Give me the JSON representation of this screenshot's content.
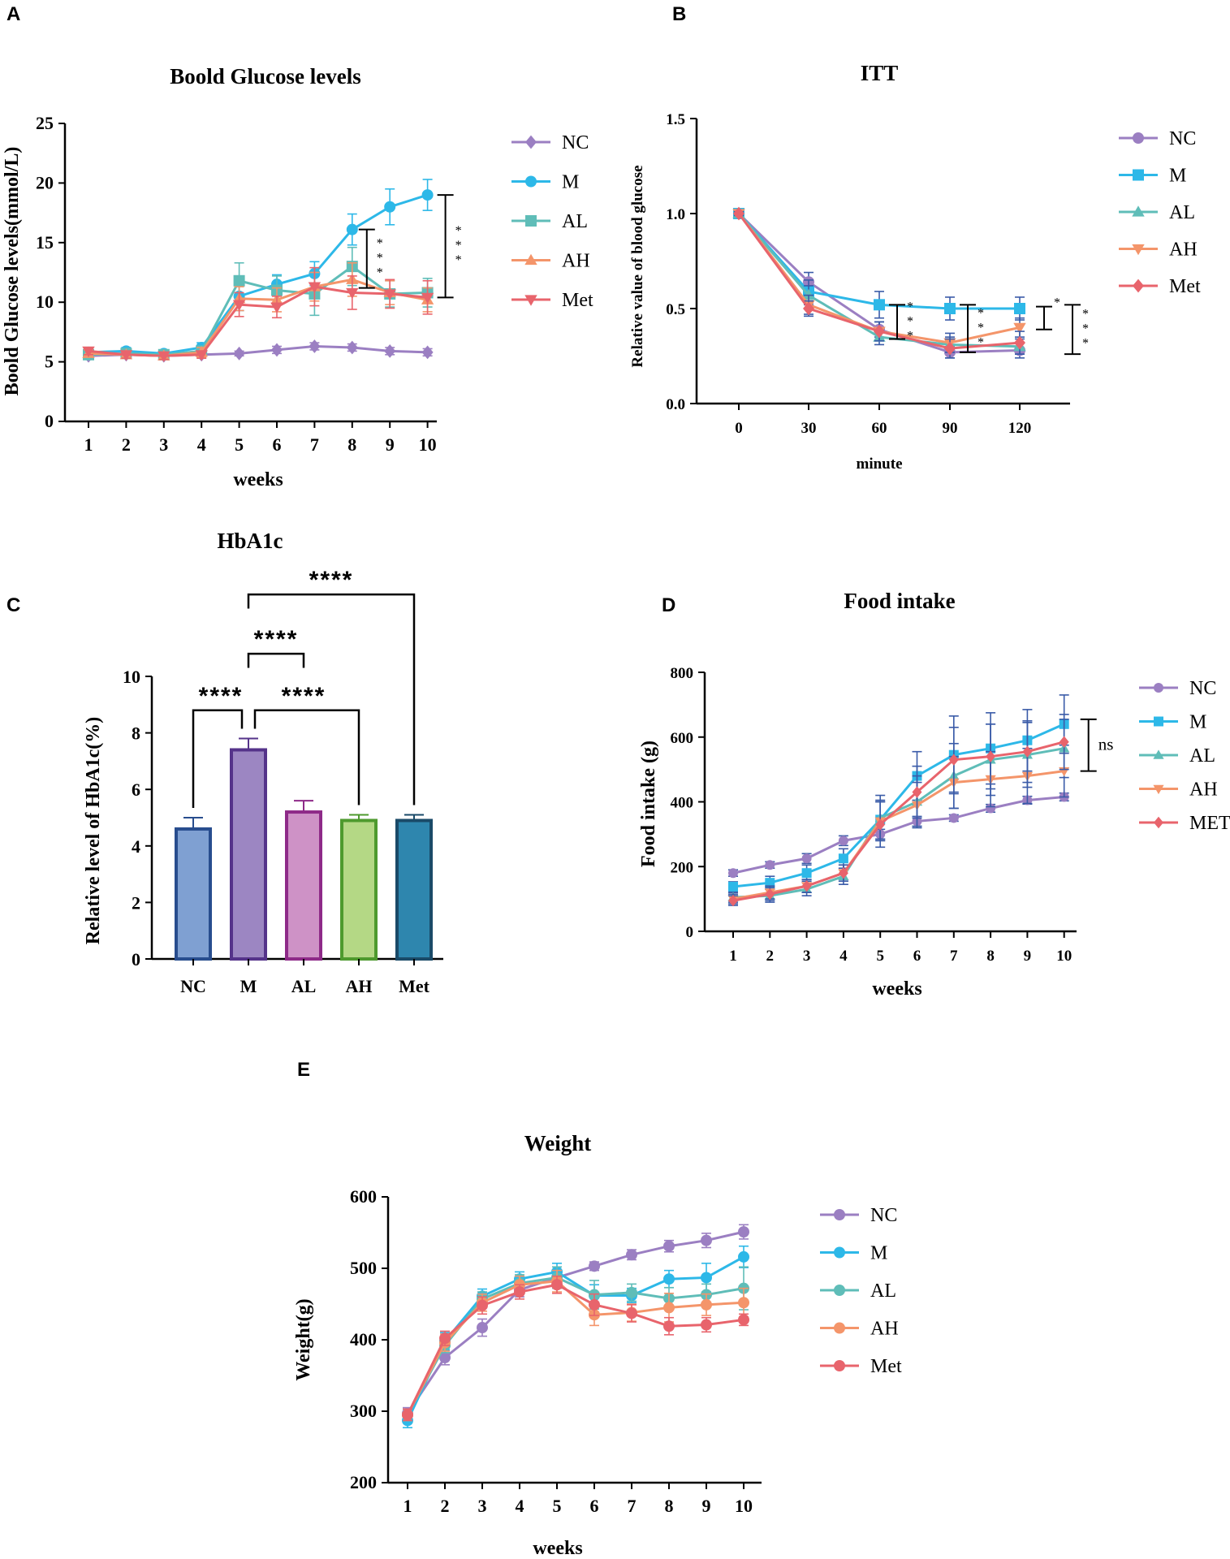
{
  "colors": {
    "NC": "#9B7FC2",
    "M": "#2DB8E8",
    "AL": "#5FBDB8",
    "AH": "#F4956A",
    "Met": "#E8646C",
    "err": "#3A5BA8",
    "bar_NC_fill": "#7FA0D2",
    "bar_NC_edge": "#284D8E",
    "bar_M_fill": "#9C86C2",
    "bar_M_edge": "#55338A",
    "bar_AL_fill": "#CE92C6",
    "bar_AL_edge": "#8E2A88",
    "bar_AH_fill": "#B4D885",
    "bar_AH_edge": "#4E9A2E",
    "bar_Met_fill": "#2E86AE",
    "bar_Met_edge": "#1A4A68"
  },
  "panels": {
    "A": {
      "label": "A"
    },
    "B": {
      "label": "B"
    },
    "C": {
      "label": "C"
    },
    "D": {
      "label": "D"
    },
    "E": {
      "label": "E"
    }
  },
  "chart_data": [
    {
      "id": "A",
      "type": "line",
      "title": "Boold Glucose levels",
      "xlabel": "weeks",
      "ylabel": "Boold Glucose levels(mmol/L)",
      "x": [
        1,
        2,
        3,
        4,
        5,
        6,
        7,
        8,
        9,
        10
      ],
      "ylim": [
        0,
        25
      ],
      "yticks": [
        0,
        5,
        10,
        15,
        20,
        25
      ],
      "series": [
        {
          "name": "NC",
          "marker": "diamond",
          "values": [
            5.5,
            5.6,
            5.5,
            5.6,
            5.7,
            6.0,
            6.3,
            6.2,
            5.9,
            5.8
          ],
          "err": [
            0.2,
            0.2,
            0.2,
            0.2,
            0.2,
            0.3,
            0.3,
            0.3,
            0.3,
            0.3
          ]
        },
        {
          "name": "M",
          "marker": "circle",
          "values": [
            5.8,
            5.9,
            5.7,
            6.2,
            10.5,
            11.5,
            12.4,
            16.1,
            18.0,
            19.0
          ],
          "err": [
            0.3,
            0.3,
            0.3,
            0.4,
            1.2,
            0.8,
            1.0,
            1.3,
            1.5,
            1.3
          ]
        },
        {
          "name": "AL",
          "marker": "square",
          "values": [
            5.6,
            5.7,
            5.6,
            5.9,
            11.8,
            11.0,
            10.7,
            13.0,
            10.7,
            10.8
          ],
          "err": [
            0.3,
            0.3,
            0.3,
            0.4,
            1.5,
            1.2,
            1.8,
            1.6,
            1.1,
            1.2
          ]
        },
        {
          "name": "AH",
          "marker": "triangle-up",
          "values": [
            5.7,
            5.6,
            5.5,
            5.8,
            10.3,
            10.2,
            11.3,
            11.9,
            10.8,
            10.2
          ],
          "err": [
            0.3,
            0.3,
            0.3,
            0.4,
            1.0,
            1.0,
            1.2,
            1.4,
            1.0,
            1.0
          ]
        },
        {
          "name": "Met",
          "marker": "triangle-down",
          "values": [
            5.9,
            5.6,
            5.5,
            5.6,
            9.8,
            9.6,
            11.3,
            10.8,
            10.7,
            10.4
          ],
          "err": [
            0.3,
            0.3,
            0.3,
            0.3,
            1.0,
            0.9,
            1.6,
            1.4,
            1.2,
            1.4
          ]
        }
      ],
      "significance": [
        {
          "x": 8,
          "y_low": 11.2,
          "y_high": 16.1,
          "text": "* * *"
        },
        {
          "x": 10,
          "y_low": 10.4,
          "y_high": 19.0,
          "text": "* * *"
        }
      ]
    },
    {
      "id": "B",
      "type": "line",
      "title": "ITT",
      "xlabel": "minute",
      "ylabel": "Relative value of blood glucose",
      "x": [
        0,
        30,
        60,
        90,
        120
      ],
      "ylim": [
        0,
        1.5
      ],
      "yticks": [
        "0.0",
        "0.5",
        "1.0",
        "1.5"
      ],
      "series": [
        {
          "name": "NC",
          "marker": "circle",
          "values": [
            1.0,
            0.64,
            0.39,
            0.27,
            0.28
          ],
          "err": [
            0.01,
            0.05,
            0.04,
            0.03,
            0.04
          ]
        },
        {
          "name": "M",
          "marker": "square",
          "values": [
            1.0,
            0.59,
            0.52,
            0.5,
            0.5
          ],
          "err": [
            0.01,
            0.06,
            0.07,
            0.06,
            0.06
          ]
        },
        {
          "name": "AL",
          "marker": "triangle-up",
          "values": [
            1.0,
            0.57,
            0.35,
            0.31,
            0.3
          ],
          "err": [
            0.01,
            0.05,
            0.04,
            0.04,
            0.04
          ]
        },
        {
          "name": "AH",
          "marker": "triangle-down",
          "values": [
            1.0,
            0.52,
            0.38,
            0.32,
            0.4
          ],
          "err": [
            0.01,
            0.05,
            0.05,
            0.05,
            0.05
          ]
        },
        {
          "name": "Met",
          "marker": "diamond",
          "values": [
            1.0,
            0.5,
            0.38,
            0.29,
            0.32
          ],
          "err": [
            0.01,
            0.04,
            0.05,
            0.05,
            0.06
          ]
        }
      ],
      "significance": [
        {
          "x": 60,
          "y_low": 0.34,
          "y_high": 0.52,
          "text": "* * *"
        },
        {
          "x": 90,
          "y_low": 0.27,
          "y_high": 0.52,
          "text": "* * *"
        },
        {
          "x": 120,
          "y_low": 0.39,
          "y_high": 0.51,
          "text": "*"
        },
        {
          "x": 120,
          "y_low": 0.26,
          "y_high": 0.52,
          "text": "* * *"
        }
      ]
    },
    {
      "id": "C",
      "type": "bar",
      "title": "HbA1c",
      "xlabel": "",
      "ylabel": "Relative level of HbA1c(%)",
      "categories": [
        "NC",
        "M",
        "AL",
        "AH",
        "Met"
      ],
      "values": [
        4.6,
        7.4,
        5.2,
        4.9,
        4.9
      ],
      "err": [
        0.4,
        0.4,
        0.4,
        0.2,
        0.2
      ],
      "ylim": [
        0,
        10
      ],
      "yticks": [
        0,
        2,
        4,
        6,
        8,
        10
      ],
      "significance": [
        {
          "from": "NC",
          "to": "M",
          "text": "****",
          "level": 8.8
        },
        {
          "from": "M",
          "to": "AH",
          "text": "****",
          "level": 8.8
        },
        {
          "from": "M",
          "to": "AL",
          "text": "****",
          "level": 10.8
        },
        {
          "from": "M",
          "to": "Met",
          "text": "****",
          "level": 12.9
        }
      ]
    },
    {
      "id": "D",
      "type": "line",
      "title": "Food intake",
      "xlabel": "weeks",
      "ylabel": "Food intake (g)",
      "x": [
        1,
        2,
        3,
        4,
        5,
        6,
        7,
        8,
        9,
        10
      ],
      "ylim": [
        0,
        800
      ],
      "yticks": [
        0,
        200,
        400,
        600,
        800
      ],
      "series": [
        {
          "name": "NC",
          "marker": "circle",
          "values": [
            180,
            205,
            225,
            280,
            300,
            340,
            350,
            380,
            405,
            415
          ],
          "err": [
            10,
            10,
            15,
            15,
            15,
            15,
            10,
            12,
            12,
            12
          ]
        },
        {
          "name": "M",
          "marker": "square",
          "values": [
            138,
            150,
            180,
            225,
            345,
            480,
            545,
            565,
            590,
            640
          ],
          "err": [
            15,
            20,
            25,
            30,
            60,
            75,
            120,
            110,
            95,
            90
          ]
        },
        {
          "name": "AL",
          "marker": "triangle-up",
          "values": [
            105,
            110,
            130,
            170,
            350,
            400,
            480,
            530,
            545,
            565
          ],
          "err": [
            15,
            20,
            20,
            25,
            70,
            80,
            100,
            110,
            100,
            90
          ]
        },
        {
          "name": "AH",
          "marker": "triangle-down",
          "values": [
            100,
            120,
            140,
            180,
            340,
            390,
            460,
            470,
            480,
            495
          ],
          "err": [
            15,
            20,
            20,
            25,
            60,
            70,
            80,
            85,
            85,
            80
          ]
        },
        {
          "name": "MET",
          "marker": "diamond",
          "values": [
            95,
            115,
            140,
            180,
            330,
            430,
            530,
            540,
            555,
            585
          ],
          "err": [
            15,
            20,
            20,
            25,
            70,
            80,
            100,
            100,
            95,
            85
          ]
        }
      ],
      "significance": [
        {
          "x": 10,
          "y_low": 495,
          "y_high": 655,
          "text": "ns"
        }
      ]
    },
    {
      "id": "E",
      "type": "line",
      "title": "Weight",
      "xlabel": "weeks",
      "ylabel": "Weight(g)",
      "x": [
        1,
        2,
        3,
        4,
        5,
        6,
        7,
        8,
        9,
        10
      ],
      "ylim": [
        200,
        600
      ],
      "yticks": [
        200,
        300,
        400,
        500,
        600
      ],
      "series": [
        {
          "name": "NC",
          "marker": "circle",
          "values": [
            297,
            375,
            417,
            470,
            487,
            503,
            519,
            531,
            539,
            551
          ],
          "err": [
            8,
            10,
            12,
            10,
            10,
            6,
            7,
            8,
            10,
            10
          ]
        },
        {
          "name": "M",
          "marker": "circle",
          "values": [
            287,
            398,
            461,
            485,
            495,
            462,
            462,
            485,
            487,
            516
          ],
          "err": [
            10,
            12,
            10,
            10,
            12,
            15,
            10,
            12,
            20,
            15
          ]
        },
        {
          "name": "AL",
          "marker": "circle",
          "values": [
            295,
            392,
            457,
            479,
            487,
            463,
            466,
            458,
            463,
            472
          ],
          "err": [
            8,
            10,
            10,
            12,
            15,
            20,
            12,
            15,
            15,
            30
          ]
        },
        {
          "name": "AH",
          "marker": "circle",
          "values": [
            295,
            396,
            452,
            477,
            482,
            435,
            438,
            445,
            449,
            452
          ],
          "err": [
            8,
            12,
            12,
            12,
            15,
            15,
            12,
            20,
            15,
            20
          ]
        },
        {
          "name": "Met",
          "marker": "circle",
          "values": [
            295,
            402,
            448,
            467,
            477,
            449,
            437,
            419,
            421,
            428
          ],
          "err": [
            8,
            10,
            12,
            10,
            12,
            15,
            12,
            12,
            10,
            8
          ]
        }
      ]
    }
  ]
}
